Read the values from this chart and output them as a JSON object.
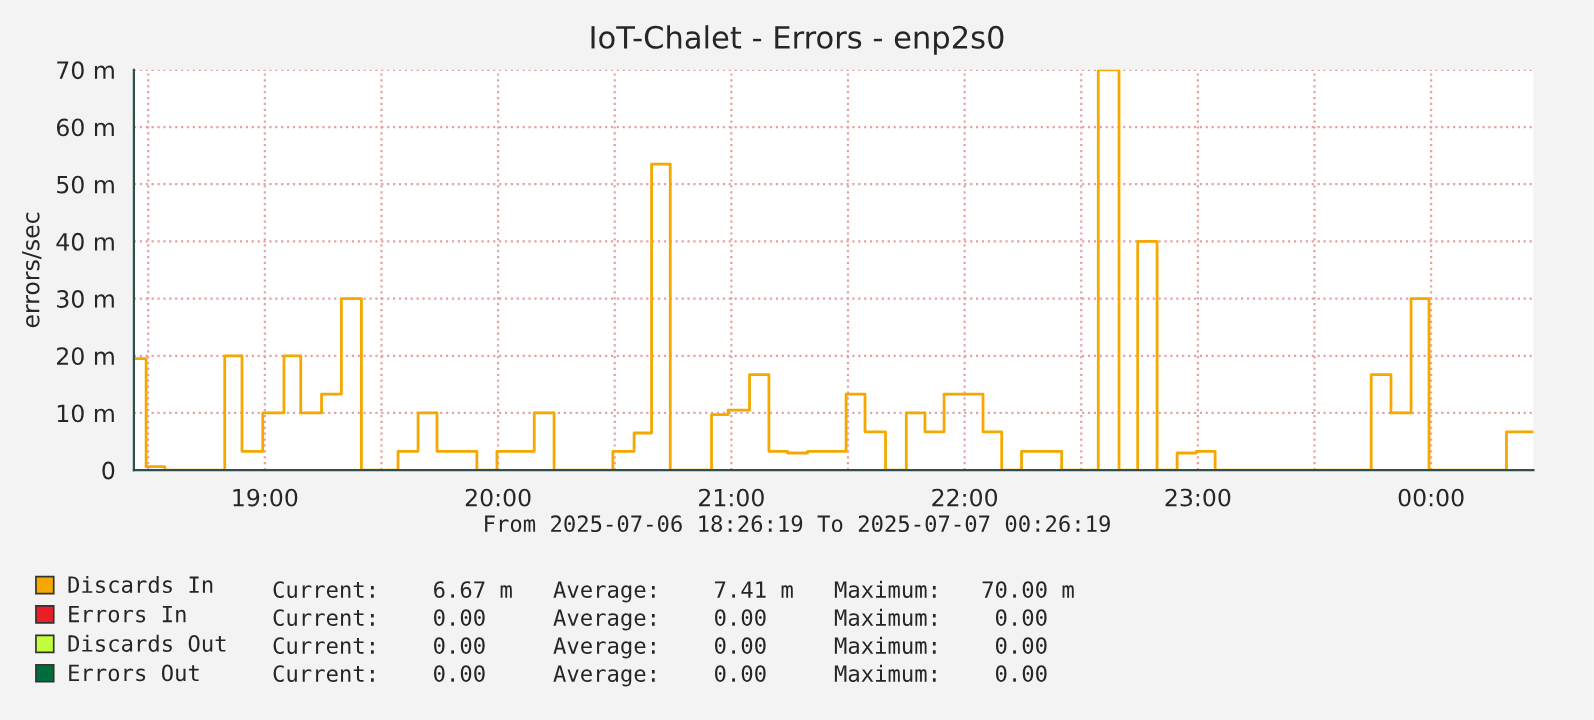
{
  "chart_data": {
    "type": "step",
    "title": "IoT-Chalet - Errors - enp2s0",
    "ylabel": "errors/sec",
    "xlim": [
      18.4386,
      24.4386
    ],
    "xticks": [
      {
        "value": 18.5,
        "label": null
      },
      {
        "value": 19,
        "label": "19:00"
      },
      {
        "value": 19.5,
        "label": null
      },
      {
        "value": 20,
        "label": "20:00"
      },
      {
        "value": 20.5,
        "label": null
      },
      {
        "value": 21,
        "label": "21:00"
      },
      {
        "value": 21.5,
        "label": null
      },
      {
        "value": 22,
        "label": "22:00"
      },
      {
        "value": 22.5,
        "label": null
      },
      {
        "value": 23,
        "label": "23:00"
      },
      {
        "value": 23.5,
        "label": null
      },
      {
        "value": 24,
        "label": "00:00"
      }
    ],
    "ylim": [
      0,
      70
    ],
    "yticks": [
      0,
      {
        "value": 10,
        "label": "10 m"
      },
      {
        "value": 20,
        "label": "20 m"
      },
      {
        "value": 30,
        "label": "30 m"
      },
      {
        "value": 40,
        "label": "40 m"
      },
      {
        "value": 50,
        "label": "50 m"
      },
      {
        "value": 60,
        "label": "60 m"
      },
      {
        "value": 70,
        "label": "70 m"
      }
    ],
    "series": [
      {
        "name": "Discards In",
        "color": "#f5a800",
        "x": [
          18.4386,
          18.491,
          18.571,
          18.828,
          18.902,
          18.991,
          19.082,
          19.154,
          19.243,
          19.328,
          19.414,
          19.571,
          19.657,
          19.738,
          19.909,
          19.995,
          20.155,
          20.24,
          20.492,
          20.583,
          20.658,
          20.738,
          20.915,
          20.986,
          21.078,
          21.161,
          21.241,
          21.327,
          21.492,
          21.573,
          21.661,
          21.75,
          21.83,
          21.912,
          22.079,
          22.159,
          22.244,
          22.416,
          22.573,
          22.662,
          22.742,
          22.825,
          22.911,
          22.993,
          23.074,
          23.743,
          23.828,
          23.914,
          23.991,
          24.323,
          24.4386
        ],
        "values": [
          19.5,
          0.6,
          0,
          20,
          3.3,
          10,
          20,
          10,
          13.3,
          30,
          0,
          3.3,
          10,
          3.3,
          0,
          3.3,
          10,
          0,
          3.3,
          6.5,
          53.5,
          0,
          9.7,
          10.5,
          16.7,
          3.3,
          3.0,
          3.3,
          13.3,
          6.7,
          0,
          10,
          6.7,
          13.3,
          6.7,
          0,
          3.3,
          0,
          70,
          0,
          40,
          0,
          3.0,
          3.3,
          0,
          16.7,
          10,
          30,
          0,
          6.7,
          6.7
        ]
      },
      {
        "name": "Errors In",
        "color": "#ea1f25"
      },
      {
        "name": "Discards Out",
        "color": "#c4fd3d"
      },
      {
        "name": "Errors Out",
        "color": "#006b3c"
      }
    ],
    "annotations": [
      "From 2025-07-06 18:26:19 To 2025-07-07 00:26:19",
      "Current:    6.67 m   Average:    7.41 m   Maximum:   70.00 m",
      "Current:    0.00     Average:    0.00     Maximum:    0.00",
      "Current:    0.00     Average:    0.00     Maximum:    0.00",
      "Current:    0.00     Average:    0.00     Maximum:    0.00"
    ],
    "grid": true,
    "legend": "bottom left"
  }
}
